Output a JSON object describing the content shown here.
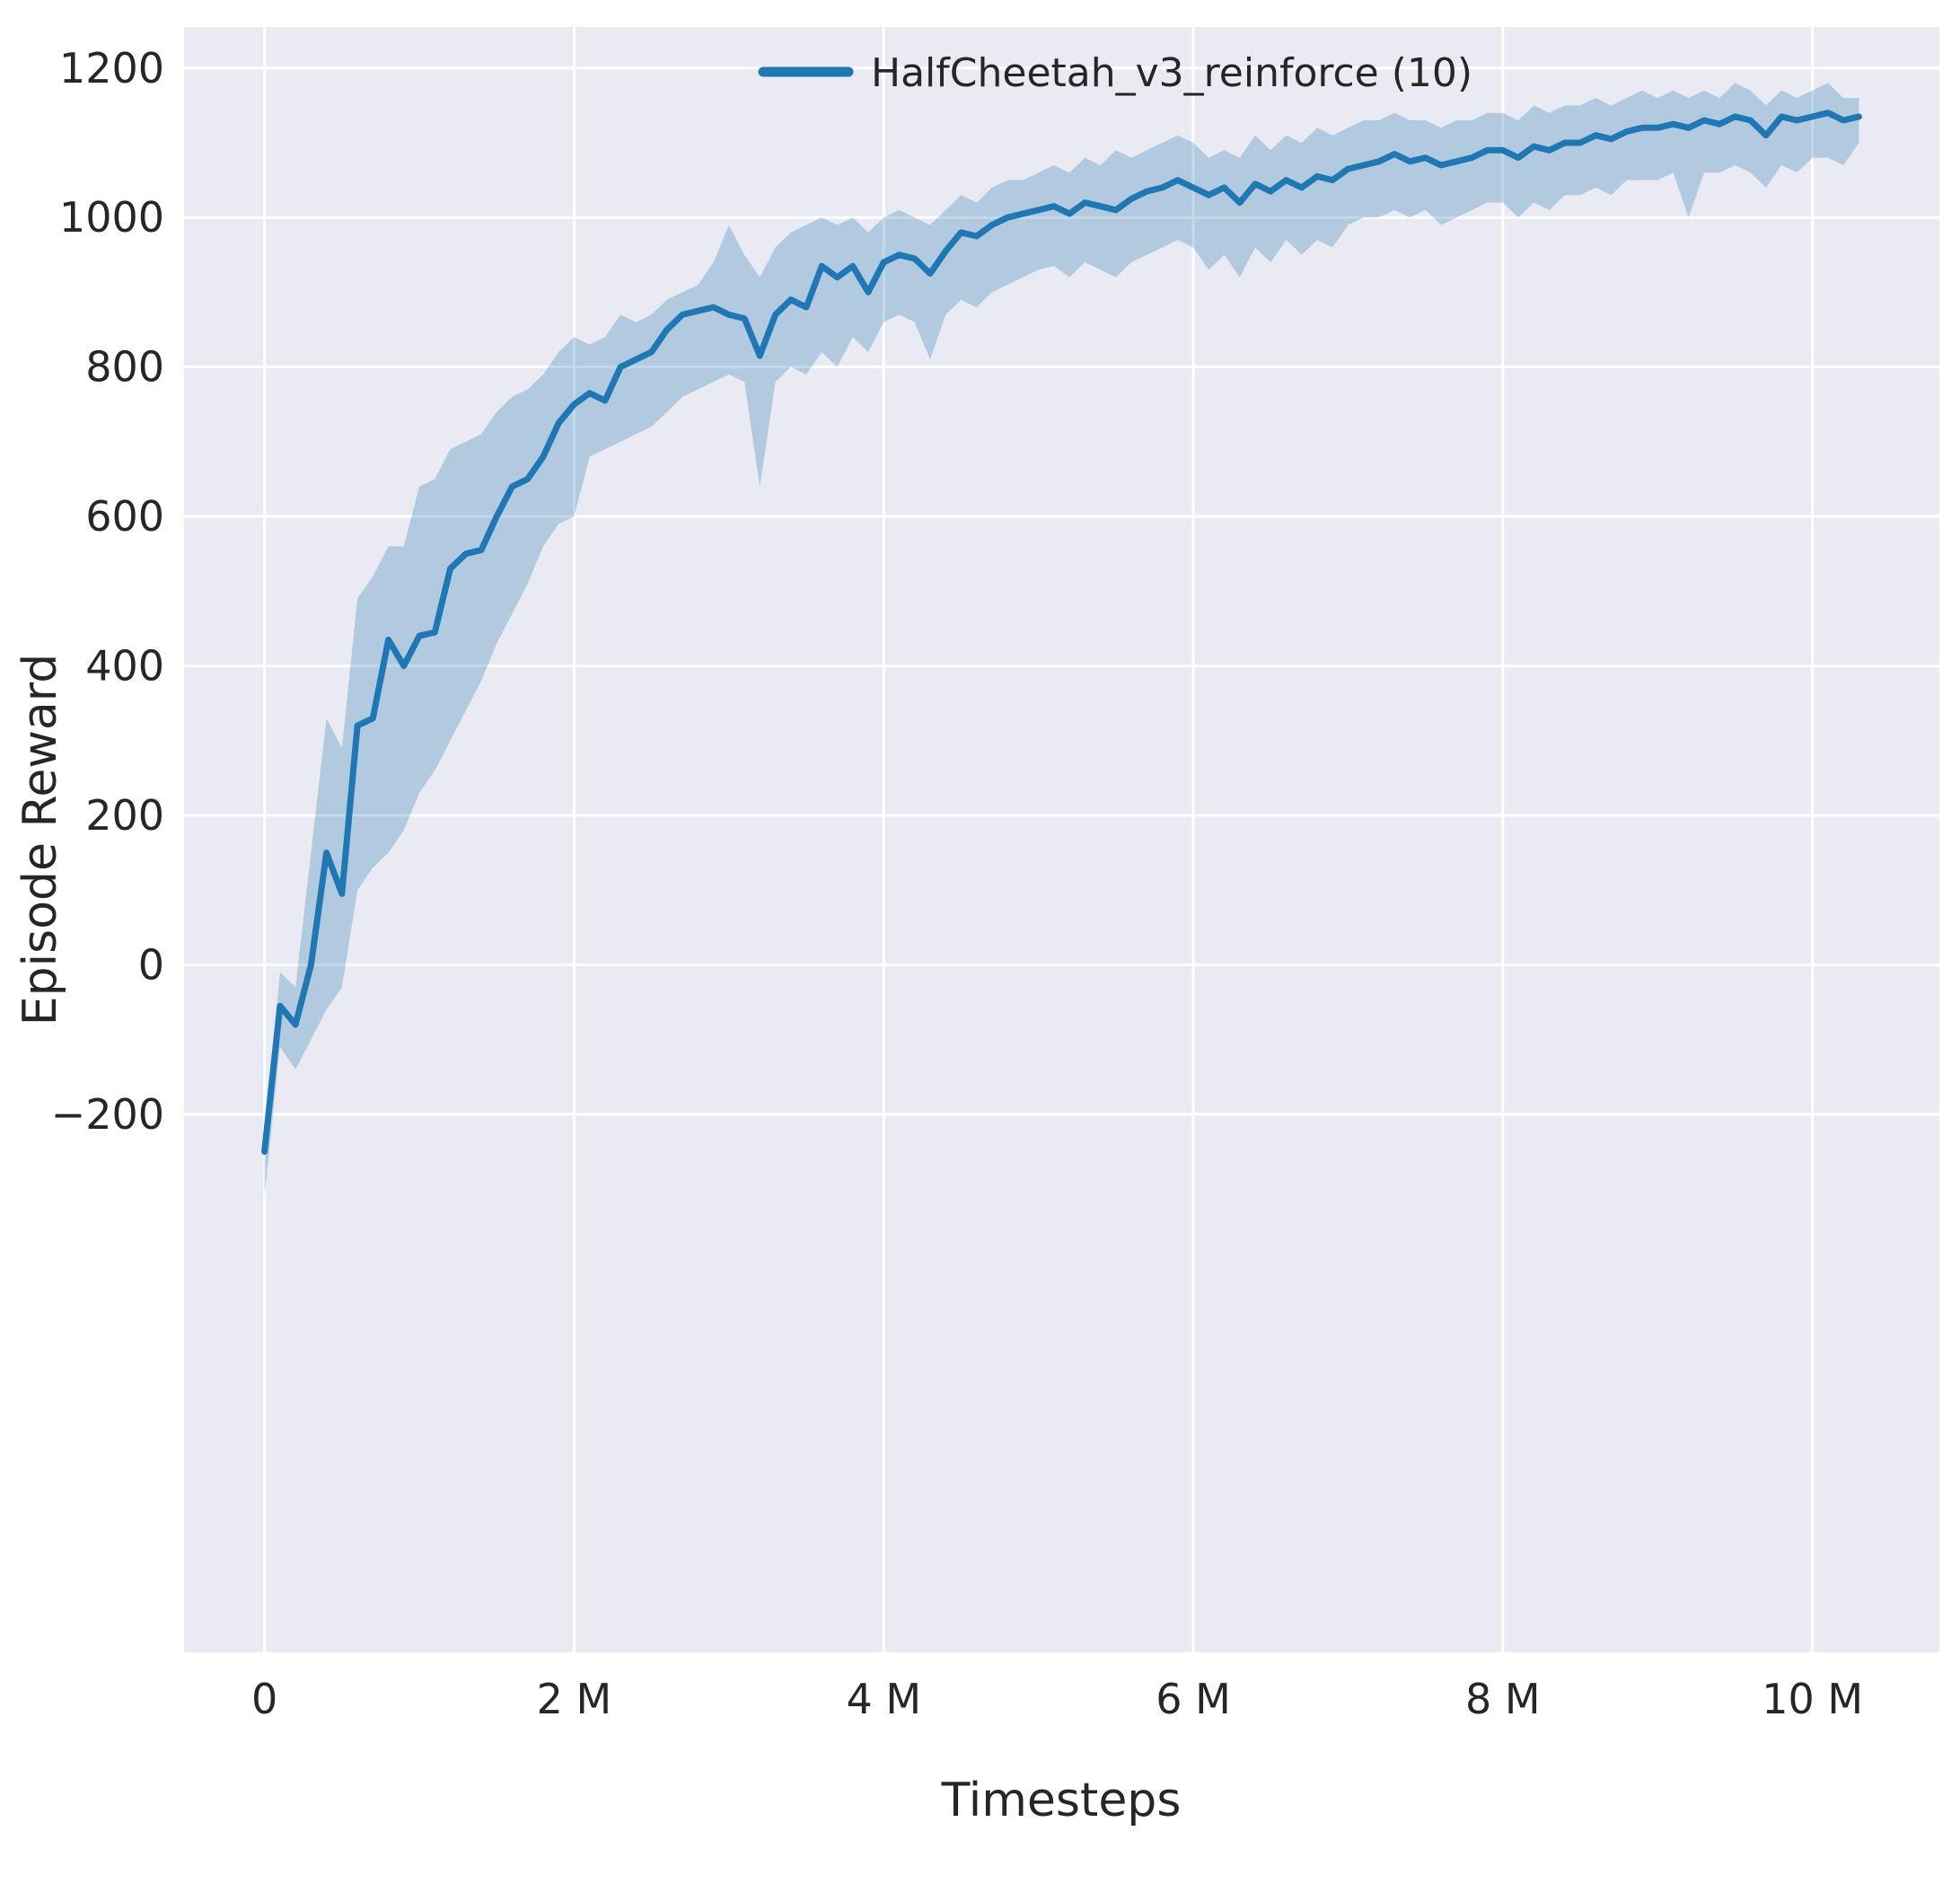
{
  "chart_data": {
    "type": "line",
    "title": "",
    "xlabel": "Timesteps",
    "ylabel": "Episode Reward",
    "x_unit": "millions of timesteps",
    "xlim": [
      -0.52,
      10.82
    ],
    "ylim": [
      -920,
      1255
    ],
    "xticks": [
      0,
      2,
      4,
      6,
      8,
      10
    ],
    "xtick_labels": [
      "0",
      "2 M",
      "4 M",
      "6 M",
      "8 M",
      "10 M"
    ],
    "yticks": [
      -200,
      0,
      200,
      400,
      600,
      800,
      1000,
      1200
    ],
    "grid": true,
    "legend_position": "upper-center-right-inside",
    "colors": {
      "line": "#1f77b4",
      "band": "#1f77b4",
      "band_opacity": 0.28,
      "plot_bg": "#eaeaf2",
      "grid": "#ffffff",
      "text": "#262626"
    },
    "x_start": 0,
    "x_step": 0.1,
    "series": [
      {
        "name": "HalfCheetah_v3_reinforce (10)",
        "mean": [
          -250,
          -55,
          -80,
          0,
          150,
          95,
          320,
          330,
          435,
          400,
          440,
          445,
          530,
          550,
          555,
          600,
          640,
          650,
          680,
          725,
          750,
          765,
          755,
          800,
          810,
          820,
          850,
          870,
          875,
          880,
          870,
          865,
          815,
          870,
          890,
          880,
          935,
          920,
          935,
          900,
          940,
          950,
          945,
          925,
          955,
          980,
          975,
          990,
          1000,
          1005,
          1010,
          1015,
          1005,
          1020,
          1015,
          1010,
          1025,
          1035,
          1040,
          1050,
          1040,
          1030,
          1040,
          1020,
          1045,
          1035,
          1050,
          1040,
          1055,
          1050,
          1065,
          1070,
          1075,
          1085,
          1075,
          1080,
          1070,
          1075,
          1080,
          1090,
          1090,
          1080,
          1095,
          1090,
          1100,
          1100,
          1110,
          1105,
          1115,
          1120,
          1120,
          1125,
          1120,
          1130,
          1125,
          1135,
          1130,
          1110,
          1135,
          1130,
          1135,
          1140,
          1130,
          1135
        ],
        "band_low": [
          -310,
          -110,
          -140,
          -100,
          -60,
          -30,
          100,
          130,
          150,
          180,
          230,
          260,
          300,
          340,
          380,
          430,
          470,
          510,
          560,
          590,
          600,
          680,
          690,
          700,
          710,
          720,
          740,
          760,
          770,
          780,
          790,
          780,
          640,
          780,
          800,
          790,
          820,
          800,
          840,
          820,
          860,
          870,
          860,
          810,
          870,
          890,
          880,
          900,
          910,
          920,
          930,
          935,
          920,
          940,
          930,
          920,
          940,
          950,
          960,
          970,
          960,
          930,
          950,
          920,
          960,
          940,
          970,
          950,
          970,
          960,
          990,
          1000,
          1000,
          1010,
          1000,
          1010,
          990,
          1000,
          1010,
          1020,
          1020,
          1000,
          1020,
          1010,
          1030,
          1030,
          1040,
          1030,
          1050,
          1050,
          1050,
          1060,
          1000,
          1060,
          1060,
          1070,
          1060,
          1040,
          1070,
          1060,
          1080,
          1080,
          1070,
          1100
        ],
        "band_high": [
          -230,
          -10,
          -30,
          150,
          330,
          290,
          490,
          520,
          560,
          560,
          640,
          650,
          690,
          700,
          710,
          740,
          760,
          770,
          790,
          820,
          840,
          830,
          840,
          870,
          860,
          870,
          890,
          900,
          910,
          940,
          990,
          950,
          920,
          960,
          980,
          990,
          1000,
          990,
          1000,
          980,
          1000,
          1010,
          1000,
          990,
          1010,
          1030,
          1020,
          1040,
          1050,
          1050,
          1060,
          1070,
          1060,
          1080,
          1070,
          1090,
          1080,
          1090,
          1100,
          1110,
          1100,
          1080,
          1090,
          1080,
          1110,
          1090,
          1110,
          1100,
          1120,
          1110,
          1120,
          1130,
          1130,
          1140,
          1130,
          1130,
          1120,
          1130,
          1130,
          1140,
          1140,
          1130,
          1150,
          1140,
          1150,
          1150,
          1160,
          1150,
          1160,
          1170,
          1160,
          1170,
          1160,
          1170,
          1160,
          1180,
          1170,
          1150,
          1170,
          1160,
          1170,
          1180,
          1160,
          1160
        ]
      }
    ]
  }
}
